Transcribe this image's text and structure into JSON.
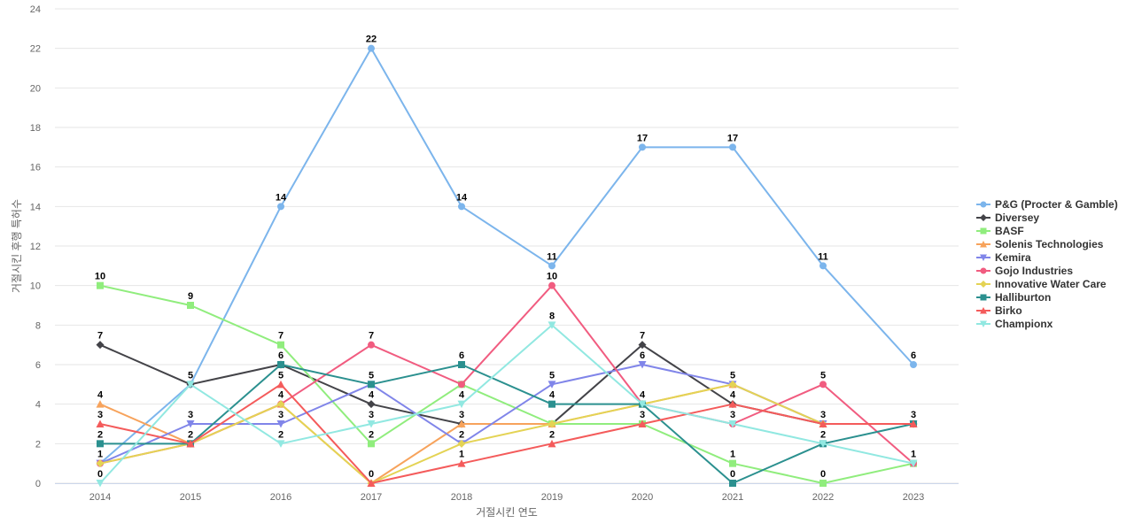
{
  "chart_data": {
    "type": "line",
    "title": "",
    "xlabel": "거절시킨 연도",
    "ylabel": "거절시킨 후행 특허수",
    "x": [
      "2014",
      "2015",
      "2016",
      "2017",
      "2018",
      "2019",
      "2020",
      "2021",
      "2022",
      "2023"
    ],
    "ylim": [
      0,
      24
    ],
    "yticks": [
      "0",
      "2",
      "4",
      "6",
      "8",
      "10",
      "12",
      "14",
      "16",
      "18",
      "20",
      "22",
      "24"
    ],
    "grid": true,
    "legend_position": "right",
    "series": [
      {
        "name": "P&G (Procter & Gamble)",
        "color": "#7cb5ec",
        "marker": "circle",
        "values": [
          1,
          5,
          14,
          22,
          14,
          11,
          17,
          17,
          11,
          6
        ],
        "labels": [
          "",
          "5",
          "14",
          "22",
          "14",
          "11",
          "17",
          "17",
          "11",
          "6"
        ]
      },
      {
        "name": "Diversey",
        "color": "#434348",
        "marker": "diamond",
        "values": [
          7,
          5,
          6,
          4,
          3,
          3,
          7,
          4,
          3,
          3
        ],
        "labels": [
          "7",
          "",
          "",
          "4",
          "",
          "",
          "7",
          "",
          "",
          ""
        ]
      },
      {
        "name": "BASF",
        "color": "#90ed7d",
        "marker": "square",
        "values": [
          10,
          9,
          7,
          2,
          5,
          3,
          3,
          1,
          0,
          1
        ],
        "labels": [
          "10",
          "9",
          "7",
          "2",
          "",
          "",
          "",
          "1",
          "0",
          ""
        ]
      },
      {
        "name": "Solenis Technologies",
        "color": "#f7a35c",
        "marker": "triangle",
        "values": [
          4,
          2,
          4,
          0,
          3,
          3,
          4,
          5,
          3,
          3
        ],
        "labels": [
          "4",
          "",
          "4",
          "",
          "3",
          "",
          "",
          "",
          "",
          ""
        ]
      },
      {
        "name": "Kemira",
        "color": "#8085e9",
        "marker": "triangle-down",
        "values": [
          1,
          3,
          3,
          5,
          2,
          5,
          6,
          5,
          3,
          3
        ],
        "labels": [
          "",
          "3",
          "3",
          "",
          "2",
          "5",
          "6",
          "5",
          "",
          ""
        ]
      },
      {
        "name": "Gojo Industries",
        "color": "#f15c80",
        "marker": "circle",
        "values": [
          1,
          2,
          4,
          7,
          5,
          10,
          4,
          3,
          5,
          1
        ],
        "labels": [
          "1",
          "",
          "",
          "7",
          "",
          "10",
          "",
          "3",
          "5",
          "1"
        ]
      },
      {
        "name": "Innovative Water Care",
        "color": "#e4d354",
        "marker": "diamond",
        "values": [
          1,
          2,
          4,
          0,
          2,
          3,
          4,
          5,
          3,
          3
        ],
        "labels": [
          "",
          "",
          "",
          "",
          "",
          "",
          "",
          "",
          "",
          ""
        ]
      },
      {
        "name": "Halliburton",
        "color": "#2b908f",
        "marker": "square",
        "values": [
          2,
          2,
          6,
          5,
          6,
          4,
          4,
          0,
          2,
          3
        ],
        "labels": [
          "2",
          "2",
          "6",
          "5",
          "6",
          "4",
          "4",
          "0",
          "2",
          "3"
        ]
      },
      {
        "name": "Birko",
        "color": "#f45b5b",
        "marker": "triangle",
        "values": [
          3,
          2,
          5,
          0,
          1,
          2,
          3,
          4,
          3,
          3
        ],
        "labels": [
          "3",
          "",
          "5",
          "0",
          "1",
          "2",
          "3",
          "4",
          "3",
          ""
        ]
      },
      {
        "name": "Championx",
        "color": "#91e8e1",
        "marker": "triangle-down",
        "values": [
          0,
          5,
          2,
          3,
          4,
          8,
          4,
          3,
          2,
          1
        ],
        "labels": [
          "0",
          "",
          "2",
          "3",
          "4",
          "8",
          "",
          "",
          "",
          ""
        ]
      }
    ]
  }
}
